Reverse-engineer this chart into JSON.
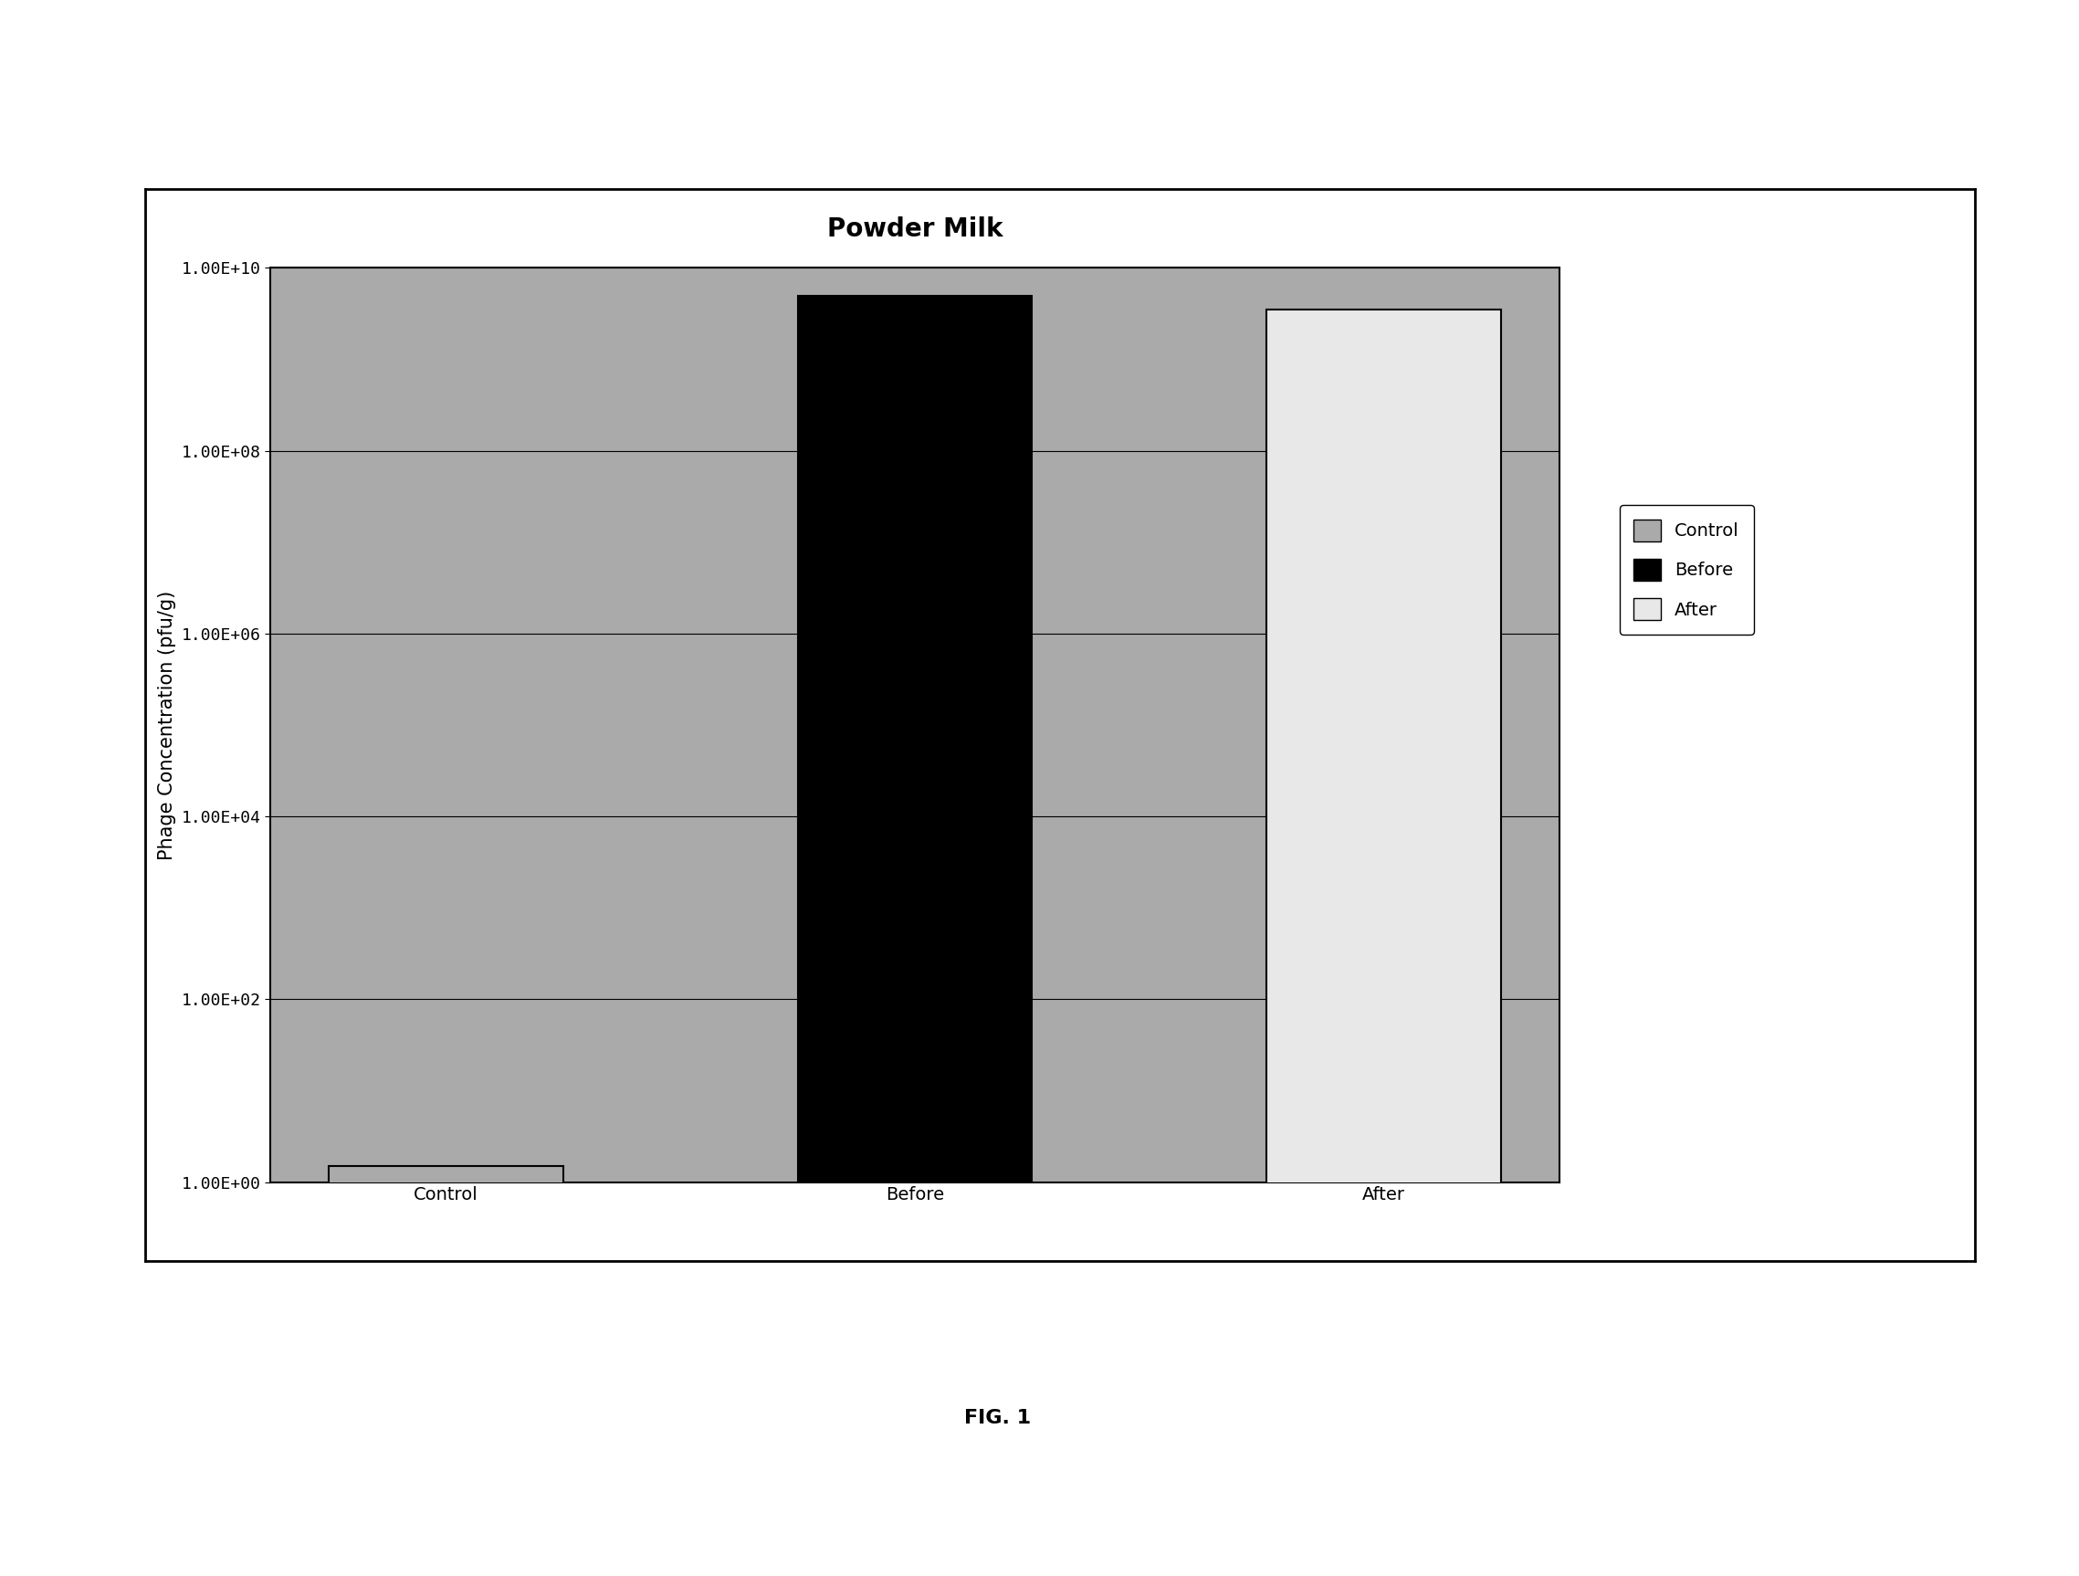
{
  "title": "Powder Milk",
  "title_fontsize": 20,
  "title_fontweight": "bold",
  "categories": [
    "Control",
    "Before",
    "After"
  ],
  "values": [
    1.5,
    5000000000.0,
    3500000000.0
  ],
  "bar_colors": [
    "#aaaaaa",
    "#000000",
    "#e8e8e8"
  ],
  "bar_edgecolor": "#000000",
  "ylabel": "Phage Concentration (pfu/g)",
  "ylabel_fontsize": 15,
  "xlabel_fontsize": 14,
  "tick_label_fontsize": 13,
  "ylim_min": 1.0,
  "ylim_max": 10000000000.0,
  "yticks": [
    1.0,
    100.0,
    10000.0,
    1000000.0,
    100000000.0,
    10000000000.0
  ],
  "yticklabels": [
    "1.00E+00",
    "1.00E+02",
    "1.00E+04",
    "1.00E+06",
    "1.00E+08",
    "1.00E+10"
  ],
  "plot_bg_color": "#aaaaaa",
  "fig_bg_color": "#ffffff",
  "legend_labels": [
    "Control",
    "Before",
    "After"
  ],
  "legend_colors": [
    "#aaaaaa",
    "#000000",
    "#e8e8e8"
  ],
  "fig_caption": "FIG. 1",
  "fig_caption_fontsize": 16,
  "fig_caption_fontweight": "bold",
  "bar_width": 0.5
}
